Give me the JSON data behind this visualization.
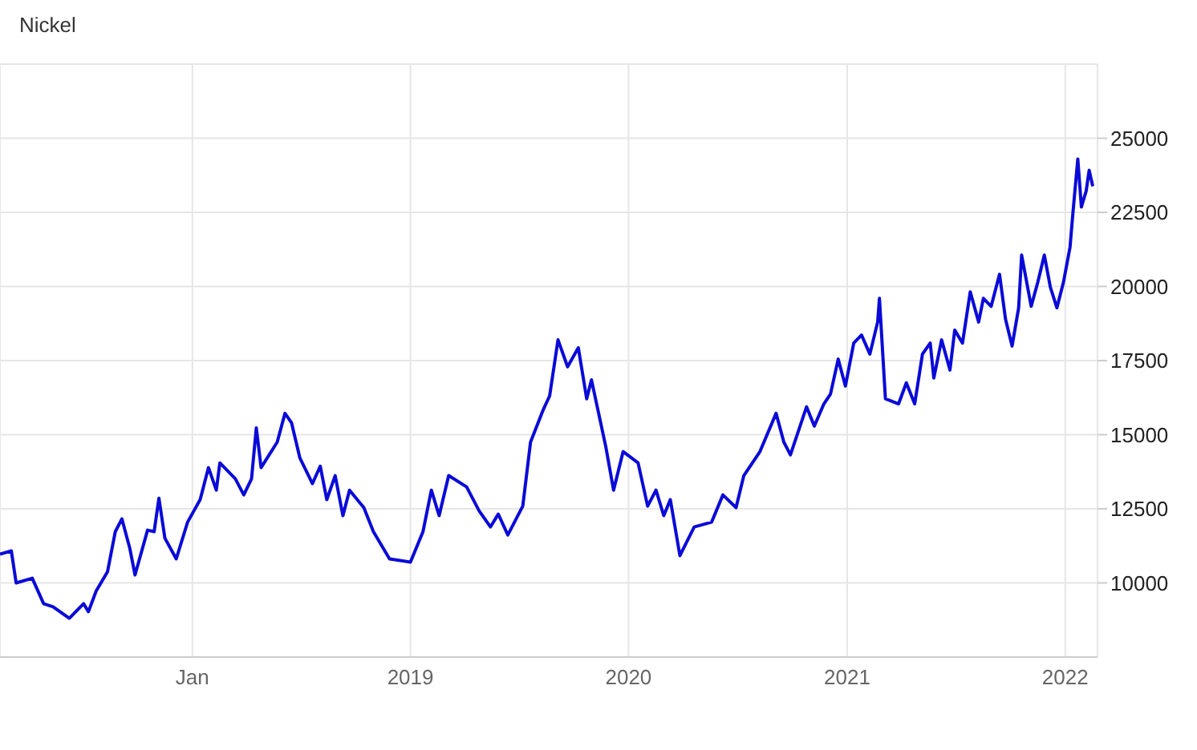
{
  "chart_data": {
    "type": "line",
    "title": "Nickel",
    "x": [
      "2017-02-13",
      "2017-03-04",
      "2017-03-12",
      "2017-04-08",
      "2017-04-27",
      "2017-05-13",
      "2017-06-09",
      "2017-07-03",
      "2017-07-11",
      "2017-07-24",
      "2017-08-12",
      "2017-08-25",
      "2017-09-05",
      "2017-09-18",
      "2017-09-27",
      "2017-10-18",
      "2017-10-29",
      "2017-11-06",
      "2017-11-16",
      "2017-12-05",
      "2017-12-24",
      "2018-01-14",
      "2018-01-28",
      "2018-02-10",
      "2018-02-16",
      "2018-03-14",
      "2018-03-28",
      "2018-04-10",
      "2018-04-18",
      "2018-04-26",
      "2018-05-23",
      "2018-06-05",
      "2018-06-16",
      "2018-06-30",
      "2018-07-21",
      "2018-08-03",
      "2018-08-14",
      "2018-08-28",
      "2018-09-10",
      "2018-09-21",
      "2018-10-15",
      "2018-10-31",
      "2018-11-27",
      "2019-01-01",
      "2019-01-22",
      "2019-02-05",
      "2019-02-18",
      "2019-03-06",
      "2019-04-05",
      "2019-04-26",
      "2019-05-15",
      "2019-05-28",
      "2019-06-13",
      "2019-07-08",
      "2019-07-21",
      "2019-08-11",
      "2019-08-22",
      "2019-09-05",
      "2019-09-21",
      "2019-10-09",
      "2019-10-23",
      "2019-10-31",
      "2019-11-24",
      "2019-12-07",
      "2019-12-23",
      "2020-01-17",
      "2020-02-02",
      "2020-02-16",
      "2020-02-29",
      "2020-03-11",
      "2020-03-27",
      "2020-04-20",
      "2020-05-19",
      "2020-06-07",
      "2020-06-29",
      "2020-07-12",
      "2020-08-08",
      "2020-09-04",
      "2020-09-17",
      "2020-09-28",
      "2020-10-25",
      "2020-11-07",
      "2020-11-23",
      "2020-12-04",
      "2020-12-17",
      "2020-12-29",
      "2021-01-12",
      "2021-01-25",
      "2021-02-08",
      "2021-02-21",
      "2021-02-24",
      "2021-03-06",
      "2021-03-28",
      "2021-04-10",
      "2021-04-24",
      "2021-05-07",
      "2021-05-20",
      "2021-05-26",
      "2021-06-08",
      "2021-06-22",
      "2021-06-30",
      "2021-07-13",
      "2021-07-26",
      "2021-08-09",
      "2021-08-17",
      "2021-08-30",
      "2021-09-13",
      "2021-09-23",
      "2021-10-04",
      "2021-10-15",
      "2021-10-20",
      "2021-11-05",
      "2021-11-16",
      "2021-11-27",
      "2021-12-07",
      "2021-12-18",
      "2021-12-29",
      "2022-01-09",
      "2022-01-14",
      "2022-01-22",
      "2022-01-28",
      "2022-02-05",
      "2022-02-10",
      "2022-02-16"
    ],
    "series": [
      {
        "color": "#0a0ad8",
        "values": [
          10970,
          11080,
          10000,
          10160,
          9300,
          9190,
          8810,
          9300,
          9030,
          9730,
          10380,
          11730,
          12160,
          11190,
          10270,
          11780,
          11730,
          12860,
          11510,
          10810,
          12050,
          12810,
          13890,
          13130,
          14050,
          13510,
          12970,
          13510,
          15230,
          13890,
          14750,
          15720,
          15400,
          14210,
          13350,
          13940,
          12810,
          13620,
          12270,
          13130,
          12540,
          11730,
          10810,
          10700,
          11730,
          13130,
          12270,
          13620,
          13240,
          12430,
          11890,
          12320,
          11620,
          12590,
          14750,
          15830,
          16310,
          18200,
          17290,
          17930,
          16210,
          16850,
          14590,
          13130,
          14430,
          14050,
          12590,
          13130,
          12270,
          12810,
          10920,
          11890,
          12050,
          12970,
          12540,
          13620,
          14430,
          15720,
          14750,
          14320,
          15940,
          15290,
          16040,
          16370,
          17550,
          16640,
          18090,
          18360,
          17720,
          18800,
          19600,
          16210,
          16040,
          16750,
          16040,
          17720,
          18090,
          16910,
          18200,
          17180,
          18530,
          18090,
          19820,
          18800,
          19600,
          19330,
          20410,
          18900,
          17990,
          19280,
          21060,
          19330,
          20140,
          21060,
          19980,
          19280,
          20140,
          21330,
          22520,
          24300,
          22680,
          23220,
          23920,
          23380
        ]
      }
    ],
    "xlim": [
      "2017-02-13",
      "2022-02-24"
    ],
    "xticks": [
      {
        "value": "2018-01-01",
        "label": "Jan"
      },
      {
        "value": "2019-01-01",
        "label": "2019"
      },
      {
        "value": "2020-01-01",
        "label": "2020"
      },
      {
        "value": "2021-01-01",
        "label": "2021"
      },
      {
        "value": "2022-01-01",
        "label": "2022"
      }
    ],
    "ylim": [
      7500,
      27500
    ],
    "yticks": [
      10000,
      12500,
      15000,
      17500,
      20000,
      22500,
      25000
    ],
    "grid": true
  }
}
